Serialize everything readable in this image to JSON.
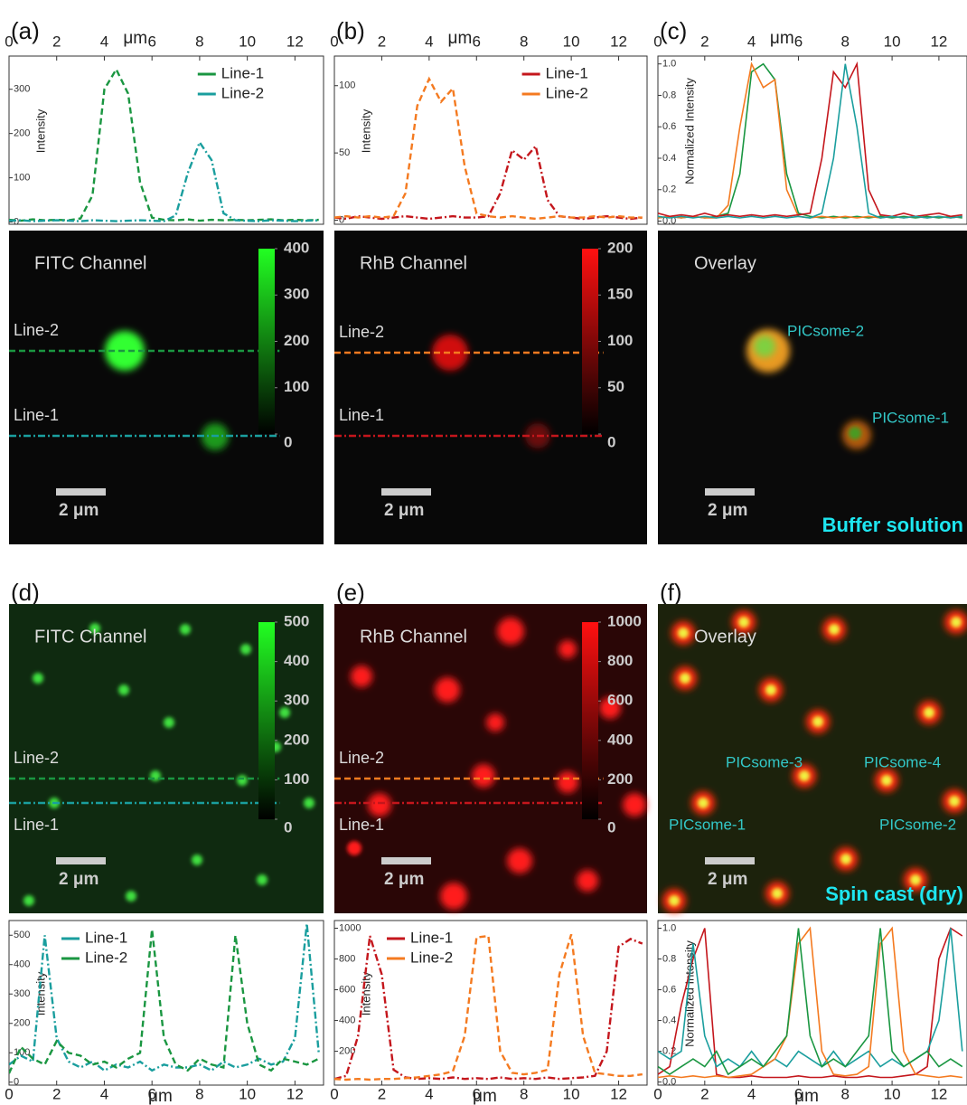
{
  "chart_data": [
    {
      "type": "line",
      "label": "(a)",
      "xlabel": "μm",
      "ylabel": "Intensity",
      "legend": "upper center",
      "x": [
        0,
        0.5,
        1,
        1.5,
        2,
        2.5,
        3,
        3.5,
        4,
        4.5,
        5,
        5.5,
        6,
        6.5,
        7,
        7.5,
        8,
        8.5,
        9,
        9.5,
        10,
        10.5,
        11,
        11.5,
        12,
        12.5,
        13
      ],
      "series": [
        {
          "name": "Line-1",
          "color": "#1a9641",
          "linestyle": "dashed",
          "values": [
            5,
            3,
            6,
            4,
            5,
            4,
            8,
            60,
            300,
            345,
            290,
            90,
            10,
            5,
            4,
            6,
            3,
            5,
            4,
            5,
            4,
            5,
            6,
            4,
            5,
            4,
            5
          ]
        },
        {
          "name": "Line-2",
          "color": "#1a9e9e",
          "linestyle": "dashdot",
          "values": [
            3,
            4,
            2,
            3,
            4,
            3,
            2,
            4,
            3,
            2,
            3,
            4,
            3,
            2,
            15,
            110,
            180,
            140,
            20,
            4,
            3,
            2,
            4,
            3,
            2,
            3,
            4
          ]
        }
      ],
      "xlim": [
        0,
        13.2
      ],
      "xticks": [
        0,
        2,
        4,
        6,
        8,
        10,
        12
      ],
      "ylim": [
        -5,
        375
      ],
      "yticks": [
        0,
        100,
        200,
        300
      ],
      "image": {
        "title": "FITC Channel",
        "lines": [
          "Line-2",
          "Line-1"
        ],
        "scale_bar": "2 μm",
        "colorbar": {
          "color": "#22ff22",
          "lim": [
            0,
            400
          ],
          "ticks": [
            0,
            100,
            200,
            300,
            400
          ]
        }
      }
    },
    {
      "type": "line",
      "label": "(b)",
      "xlabel": "μm",
      "ylabel": "Intensity",
      "legend": "upper center",
      "x": [
        0,
        0.5,
        1,
        1.5,
        2,
        2.5,
        3,
        3.5,
        4,
        4.5,
        5,
        5.5,
        6,
        6.5,
        7,
        7.5,
        8,
        8.5,
        9,
        9.5,
        10,
        10.5,
        11,
        11.5,
        12,
        12.5,
        13
      ],
      "series": [
        {
          "name": "Line-1",
          "color": "#c4161c",
          "linestyle": "dashdot",
          "values": [
            2,
            1,
            3,
            2,
            1,
            2,
            3,
            2,
            1,
            2,
            3,
            2,
            2,
            3,
            20,
            52,
            45,
            55,
            15,
            3,
            2,
            1,
            2,
            3,
            2,
            1,
            2
          ]
        },
        {
          "name": "Line-2",
          "color": "#f47a20",
          "linestyle": "dashed",
          "values": [
            2,
            3,
            2,
            3,
            2,
            3,
            20,
            85,
            105,
            88,
            98,
            40,
            5,
            3,
            2,
            3,
            2,
            1,
            2,
            3,
            2,
            2,
            3,
            2,
            3,
            2,
            2
          ]
        }
      ],
      "xlim": [
        0,
        13.2
      ],
      "xticks": [
        0,
        2,
        4,
        6,
        8,
        10,
        12
      ],
      "ylim": [
        -3,
        122
      ],
      "yticks": [
        0,
        50,
        100
      ],
      "image": {
        "title": "RhB Channel",
        "lines": [
          "Line-2",
          "Line-1"
        ],
        "scale_bar": "2 μm",
        "colorbar": {
          "color": "#ff1010",
          "lim": [
            0,
            200
          ],
          "ticks": [
            0,
            50,
            100,
            150,
            200
          ]
        }
      }
    },
    {
      "type": "line",
      "label": "(c)",
      "xlabel": "μm",
      "ylabel": "Normalized Intensity",
      "x": [
        0,
        0.5,
        1,
        1.5,
        2,
        2.5,
        3,
        3.5,
        4,
        4.5,
        5,
        5.5,
        6,
        6.5,
        7,
        7.5,
        8,
        8.5,
        9,
        9.5,
        10,
        10.5,
        11,
        11.5,
        12,
        12.5,
        13
      ],
      "series": [
        {
          "color": "#1a9641",
          "linestyle": "solid",
          "values": [
            0.02,
            0.03,
            0.02,
            0.03,
            0.02,
            0.03,
            0.05,
            0.3,
            0.95,
            1.0,
            0.9,
            0.3,
            0.05,
            0.03,
            0.02,
            0.03,
            0.02,
            0.03,
            0.02,
            0.03,
            0.02,
            0.03,
            0.02,
            0.03,
            0.02,
            0.03,
            0.02
          ]
        },
        {
          "color": "#f47a20",
          "linestyle": "solid",
          "values": [
            0.02,
            0.03,
            0.02,
            0.03,
            0.02,
            0.02,
            0.1,
            0.6,
            1.0,
            0.85,
            0.9,
            0.2,
            0.03,
            0.02,
            0.03,
            0.02,
            0.03,
            0.02,
            0.03,
            0.02,
            0.03,
            0.02,
            0.03,
            0.02,
            0.03,
            0.02,
            0.03
          ]
        },
        {
          "color": "#c4161c",
          "linestyle": "solid",
          "values": [
            0.05,
            0.03,
            0.04,
            0.03,
            0.05,
            0.03,
            0.04,
            0.03,
            0.04,
            0.03,
            0.04,
            0.03,
            0.04,
            0.05,
            0.4,
            0.95,
            0.85,
            1.0,
            0.2,
            0.04,
            0.03,
            0.05,
            0.03,
            0.04,
            0.05,
            0.03,
            0.04
          ]
        },
        {
          "color": "#1a9e9e",
          "linestyle": "solid",
          "values": [
            0.03,
            0.02,
            0.03,
            0.02,
            0.03,
            0.02,
            0.03,
            0.02,
            0.03,
            0.02,
            0.03,
            0.02,
            0.03,
            0.02,
            0.05,
            0.4,
            1.0,
            0.6,
            0.05,
            0.02,
            0.03,
            0.02,
            0.03,
            0.02,
            0.03,
            0.02,
            0.03
          ]
        }
      ],
      "xlim": [
        0,
        13.2
      ],
      "xticks": [
        0,
        2,
        4,
        6,
        8,
        10,
        12
      ],
      "ylim": [
        -0.02,
        1.05
      ],
      "yticks": [
        {
          "value": 0,
          "label": "0.0"
        },
        0.2,
        0.4,
        0.6,
        0.8,
        {
          "value": 1,
          "label": "1.0"
        }
      ],
      "image": {
        "title": "Overlay",
        "annotations": [
          "PICsome-2",
          "PICsome-1"
        ],
        "scale_bar": "2 μm",
        "condition": "Buffer solution"
      }
    },
    {
      "type": "line",
      "label": "(d)",
      "xlabel": "μm",
      "ylabel": "Intensity",
      "legend": "upper left",
      "x": [
        0,
        0.5,
        1,
        1.5,
        2,
        2.5,
        3,
        3.5,
        4,
        4.5,
        5,
        5.5,
        6,
        6.5,
        7,
        7.5,
        8,
        8.5,
        9,
        9.5,
        10,
        10.5,
        11,
        11.5,
        12,
        12.5,
        13
      ],
      "series": [
        {
          "name": "Line-1",
          "color": "#1a9e9e",
          "linestyle": "dashdot",
          "values": [
            60,
            90,
            70,
            500,
            150,
            70,
            50,
            70,
            40,
            60,
            50,
            70,
            40,
            60,
            50,
            50,
            60,
            40,
            70,
            50,
            60,
            80,
            60,
            70,
            150,
            540,
            100
          ]
        },
        {
          "name": "Line-2",
          "color": "#1a9641",
          "linestyle": "dashed",
          "values": [
            30,
            120,
            80,
            60,
            140,
            100,
            90,
            60,
            70,
            50,
            80,
            100,
            520,
            150,
            60,
            40,
            80,
            60,
            50,
            500,
            200,
            60,
            40,
            80,
            70,
            60,
            80
          ]
        }
      ],
      "xlim": [
        0,
        13.2
      ],
      "xticks": [
        0,
        2,
        4,
        6,
        8,
        10,
        12
      ],
      "ylim": [
        -10,
        550
      ],
      "yticks": [
        0,
        100,
        200,
        300,
        400,
        500
      ],
      "image": {
        "title": "FITC Channel",
        "lines": [
          "Line-2",
          "Line-1"
        ],
        "scale_bar": "2 μm",
        "colorbar": {
          "color": "#22ff22",
          "lim": [
            0,
            500
          ],
          "ticks": [
            0,
            100,
            200,
            300,
            400,
            500
          ]
        }
      }
    },
    {
      "type": "line",
      "label": "(e)",
      "xlabel": "μm",
      "ylabel": "Intensity",
      "legend": "upper left",
      "x": [
        0,
        0.5,
        1,
        1.5,
        2,
        2.5,
        3,
        3.5,
        4,
        4.5,
        5,
        5.5,
        6,
        6.5,
        7,
        7.5,
        8,
        8.5,
        9,
        9.5,
        10,
        10.5,
        11,
        11.5,
        12,
        12.5,
        13
      ],
      "series": [
        {
          "name": "Line-1",
          "color": "#c4161c",
          "linestyle": "dashdot",
          "values": [
            20,
            40,
            300,
            950,
            700,
            80,
            30,
            20,
            25,
            20,
            30,
            20,
            25,
            20,
            30,
            20,
            25,
            20,
            30,
            20,
            25,
            30,
            40,
            200,
            880,
            930,
            900
          ]
        },
        {
          "name": "Line-2",
          "color": "#f47a20",
          "linestyle": "dashed",
          "values": [
            20,
            15,
            20,
            15,
            20,
            20,
            25,
            30,
            40,
            50,
            70,
            300,
            940,
            950,
            200,
            60,
            50,
            60,
            80,
            700,
            960,
            300,
            60,
            50,
            40,
            40,
            50
          ]
        }
      ],
      "xlim": [
        0,
        13.2
      ],
      "xticks": [
        0,
        2,
        4,
        6,
        8,
        10,
        12
      ],
      "ylim": [
        -20,
        1050
      ],
      "yticks": [
        200,
        400,
        600,
        800,
        1000
      ],
      "image": {
        "title": "RhB Channel",
        "lines": [
          "Line-2",
          "Line-1"
        ],
        "scale_bar": "2 μm",
        "colorbar": {
          "color": "#ff1010",
          "lim": [
            0,
            1000
          ],
          "ticks": [
            0,
            200,
            400,
            600,
            800,
            1000
          ]
        }
      }
    },
    {
      "type": "line",
      "label": "(f)",
      "xlabel": "μm",
      "ylabel": "Normalized Intensity",
      "x": [
        0,
        0.5,
        1,
        1.5,
        2,
        2.5,
        3,
        3.5,
        4,
        4.5,
        5,
        5.5,
        6,
        6.5,
        7,
        7.5,
        8,
        8.5,
        9,
        9.5,
        10,
        10.5,
        11,
        11.5,
        12,
        12.5,
        13
      ],
      "series": [
        {
          "color": "#c4161c",
          "linestyle": "solid",
          "values": [
            0.05,
            0.1,
            0.5,
            0.8,
            1.0,
            0.05,
            0.03,
            0.03,
            0.04,
            0.03,
            0.03,
            0.03,
            0.04,
            0.03,
            0.03,
            0.04,
            0.03,
            0.03,
            0.04,
            0.03,
            0.03,
            0.04,
            0.05,
            0.1,
            0.8,
            1.0,
            0.95
          ]
        },
        {
          "color": "#1a9e9e",
          "linestyle": "solid",
          "values": [
            0.2,
            0.15,
            0.2,
            0.9,
            0.3,
            0.1,
            0.15,
            0.1,
            0.2,
            0.1,
            0.15,
            0.1,
            0.2,
            0.15,
            0.1,
            0.2,
            0.1,
            0.15,
            0.2,
            0.1,
            0.15,
            0.1,
            0.15,
            0.2,
            0.4,
            1.0,
            0.2
          ]
        },
        {
          "color": "#f47a20",
          "linestyle": "solid",
          "values": [
            0.03,
            0.04,
            0.03,
            0.04,
            0.03,
            0.04,
            0.03,
            0.04,
            0.05,
            0.1,
            0.15,
            0.3,
            0.9,
            1.0,
            0.2,
            0.05,
            0.04,
            0.05,
            0.1,
            0.9,
            1.0,
            0.2,
            0.05,
            0.04,
            0.03,
            0.04,
            0.03
          ]
        },
        {
          "color": "#1a9641",
          "linestyle": "solid",
          "values": [
            0.1,
            0.05,
            0.1,
            0.15,
            0.1,
            0.2,
            0.05,
            0.1,
            0.15,
            0.1,
            0.2,
            0.3,
            1.0,
            0.3,
            0.1,
            0.15,
            0.1,
            0.2,
            0.3,
            1.0,
            0.2,
            0.1,
            0.15,
            0.2,
            0.1,
            0.15,
            0.1
          ]
        }
      ],
      "xlim": [
        0,
        13.2
      ],
      "xticks": [
        0,
        2,
        4,
        6,
        8,
        10,
        12
      ],
      "ylim": [
        -0.02,
        1.05
      ],
      "yticks": [
        {
          "value": 0,
          "label": "0.0"
        },
        0.2,
        0.4,
        0.6,
        0.8,
        {
          "value": 1,
          "label": "1.0"
        }
      ],
      "image": {
        "title": "Overlay",
        "annotations": [
          "PICsome-3",
          "PICsome-4",
          "PICsome-1",
          "PICsome-2"
        ],
        "scale_bar": "2 μm",
        "condition": "Spin cast (dry)"
      }
    }
  ]
}
